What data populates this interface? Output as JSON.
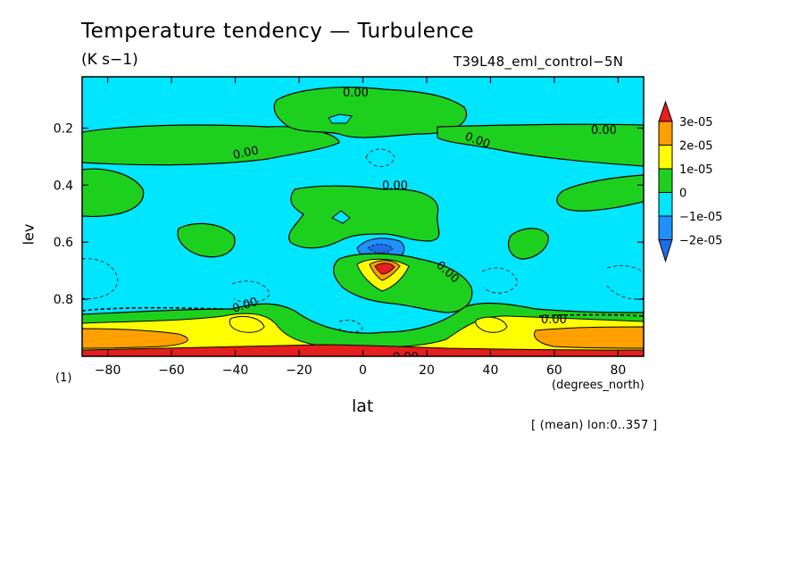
{
  "header": {
    "title": "Temperature tendency — Turbulence",
    "units": "(K s−1)",
    "run_name": "T39L48_eml_control−5N",
    "scale_marker": "(1)",
    "average_note": "[ (mean) lon:0..357 ]"
  },
  "chart_data": {
    "type": "heatmap",
    "title": "Temperature tendency — Turbulence",
    "xlabel": "lat",
    "xunits": "(degrees_north)",
    "ylabel": "lev",
    "xlim": [
      -88,
      88
    ],
    "ylim": [
      1.0,
      0.02
    ],
    "y_reversed": true,
    "xticks": [
      -80,
      -60,
      -40,
      -20,
      0,
      20,
      40,
      60,
      80
    ],
    "yticks": [
      0.2,
      0.4,
      0.6,
      0.8
    ],
    "grid": false,
    "legend_position": "right colorbar",
    "color_levels": [
      {
        "range": "< -2e-05",
        "color": "#1e6fe6"
      },
      {
        "range": "-2e-05 to -1e-05",
        "color": "#1e90ff"
      },
      {
        "range": "-1e-05 to 0",
        "color": "#00e6ff"
      },
      {
        "range": "0 to 1e-05",
        "color": "#1ed01e"
      },
      {
        "range": "1e-05 to 2e-05",
        "color": "#ffff00"
      },
      {
        "range": "2e-05 to 3e-05",
        "color": "#ffa000"
      },
      {
        "range": "> 3e-05",
        "color": "#e61e1e"
      }
    ],
    "colorbar_ticks": [
      "3e-05",
      "2e-05",
      "1e-05",
      "0",
      "−1e-05",
      "−2e-05"
    ],
    "contour_labels": [
      "0.00",
      "0.00",
      "0.00",
      "0.00",
      "0.00",
      "0.00",
      "0.00",
      "0.00",
      "0.00"
    ],
    "regions": [
      {
        "name": "upper positive (tropics)",
        "sign": "positive",
        "lat": [
          -28,
          25
        ],
        "lev": [
          0.06,
          0.22
        ]
      },
      {
        "name": "upper positive band (SH)",
        "sign": "positive",
        "lat": [
          -88,
          -8
        ],
        "lev": [
          0.19,
          0.23
        ]
      },
      {
        "name": "upper positive band (NH)",
        "sign": "positive",
        "lat": [
          40,
          88
        ],
        "lev": [
          0.19,
          0.25
        ]
      },
      {
        "name": "mid positive (tropics)",
        "sign": "positive",
        "lat": [
          -25,
          25
        ],
        "lev": [
          0.38,
          0.58
        ]
      },
      {
        "name": "negative core",
        "sign": "negative",
        "lat": [
          -2,
          12
        ],
        "lev": [
          0.58,
          0.65
        ]
      },
      {
        "name": "positive maximum",
        "sign": "positive",
        "lat": [
          -8,
          22
        ],
        "lev": [
          0.64,
          0.86
        ]
      },
      {
        "name": "boundary layer positive",
        "sign": "positive",
        "lat": [
          -88,
          88
        ],
        "lev": [
          0.85,
          1.0
        ]
      }
    ]
  }
}
